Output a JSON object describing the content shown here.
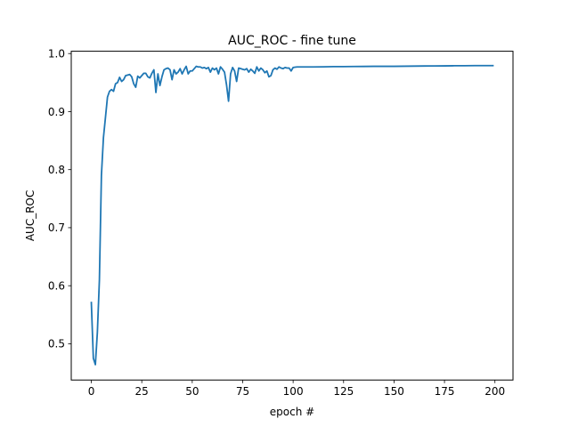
{
  "chart_data": {
    "type": "line",
    "title": "AUC_ROC - fine tune",
    "xlabel": "epoch #",
    "ylabel": "AUC_ROC",
    "xlim": [
      -9.95,
      208.95
    ],
    "ylim": [
      0.4375,
      1.004
    ],
    "xticks": [
      0,
      25,
      50,
      75,
      100,
      125,
      150,
      175,
      200
    ],
    "yticks": [
      0.5,
      0.6,
      0.7,
      0.8,
      0.9,
      1.0
    ],
    "xtick_labels": [
      "0",
      "25",
      "50",
      "75",
      "100",
      "125",
      "150",
      "175",
      "200"
    ],
    "ytick_labels": [
      "0.5",
      "0.6",
      "0.7",
      "0.8",
      "0.9",
      "1.0"
    ],
    "grid": false,
    "legend": "none",
    "series": [
      {
        "color": "#1f77b4",
        "x": [
          0,
          1,
          2,
          3,
          4,
          5,
          6,
          7,
          8,
          9,
          10,
          11,
          12,
          13,
          14,
          15,
          16,
          17,
          18,
          19,
          20,
          21,
          22,
          23,
          24,
          25,
          26,
          27,
          28,
          29,
          30,
          31,
          32,
          33,
          34,
          35,
          36,
          37,
          38,
          39,
          40,
          41,
          42,
          43,
          44,
          45,
          46,
          47,
          48,
          49,
          50,
          51,
          52,
          53,
          54,
          55,
          56,
          57,
          58,
          59,
          60,
          61,
          62,
          63,
          64,
          65,
          66,
          67,
          68,
          69,
          70,
          71,
          72,
          73,
          74,
          75,
          76,
          77,
          78,
          79,
          80,
          81,
          82,
          83,
          84,
          85,
          86,
          87,
          88,
          89,
          90,
          91,
          92,
          93,
          94,
          95,
          96,
          97,
          98,
          99,
          100,
          101,
          102,
          103,
          104,
          105,
          110,
          115,
          120,
          125,
          130,
          135,
          140,
          145,
          150,
          155,
          160,
          165,
          170,
          175,
          180,
          185,
          190,
          195,
          199
        ],
        "y": [
          0.571,
          0.475,
          0.464,
          0.52,
          0.61,
          0.79,
          0.855,
          0.89,
          0.925,
          0.935,
          0.938,
          0.935,
          0.948,
          0.95,
          0.959,
          0.952,
          0.955,
          0.962,
          0.963,
          0.964,
          0.96,
          0.948,
          0.942,
          0.961,
          0.958,
          0.962,
          0.966,
          0.966,
          0.96,
          0.958,
          0.966,
          0.972,
          0.933,
          0.965,
          0.945,
          0.96,
          0.972,
          0.974,
          0.975,
          0.972,
          0.955,
          0.972,
          0.965,
          0.968,
          0.974,
          0.965,
          0.972,
          0.978,
          0.965,
          0.97,
          0.97,
          0.974,
          0.978,
          0.977,
          0.977,
          0.975,
          0.976,
          0.974,
          0.976,
          0.968,
          0.975,
          0.972,
          0.975,
          0.965,
          0.977,
          0.973,
          0.968,
          0.946,
          0.918,
          0.965,
          0.976,
          0.97,
          0.952,
          0.975,
          0.974,
          0.973,
          0.972,
          0.974,
          0.968,
          0.973,
          0.97,
          0.966,
          0.977,
          0.97,
          0.975,
          0.972,
          0.967,
          0.97,
          0.96,
          0.962,
          0.972,
          0.975,
          0.973,
          0.977,
          0.975,
          0.974,
          0.976,
          0.975,
          0.975,
          0.97,
          0.976,
          0.9765,
          0.977,
          0.977,
          0.977,
          0.977,
          0.977,
          0.9772,
          0.9775,
          0.9775,
          0.9777,
          0.9778,
          0.978,
          0.978,
          0.978,
          0.9782,
          0.9784,
          0.9786,
          0.9787,
          0.9788,
          0.979,
          0.979,
          0.9792,
          0.9792,
          0.9792
        ]
      }
    ]
  }
}
